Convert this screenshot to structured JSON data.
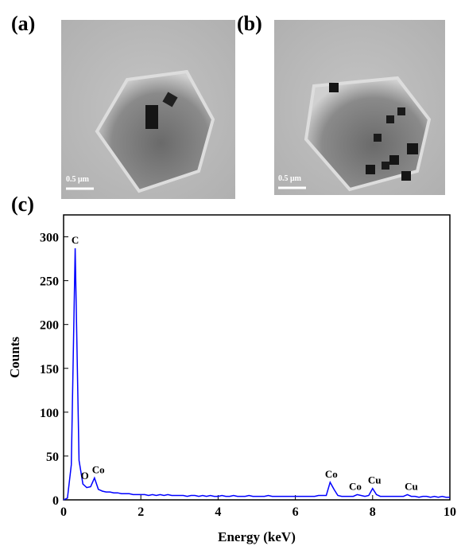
{
  "panels": [
    {
      "label": "(a)",
      "scale": "0.5 μm"
    },
    {
      "label": "(b)",
      "scale": "0.5 μm"
    },
    {
      "label": "(c)"
    }
  ],
  "chart_data": {
    "type": "line",
    "x_label": "Energy (keV)",
    "y_label": "Counts",
    "color": "#0000ff",
    "xlim": [
      0,
      10
    ],
    "ylim": [
      0,
      325
    ],
    "xticks": [
      0,
      2,
      4,
      6,
      8,
      10
    ],
    "yticks": [
      0,
      50,
      100,
      150,
      200,
      250,
      300
    ],
    "x": [
      0,
      0.1,
      0.2,
      0.3,
      0.4,
      0.5,
      0.6,
      0.7,
      0.8,
      0.9,
      1,
      1.1,
      1.2,
      1.3,
      1.4,
      1.5,
      1.6,
      1.7,
      1.8,
      1.9,
      2,
      2.1,
      2.2,
      2.3,
      2.4,
      2.5,
      2.6,
      2.7,
      2.8,
      2.9,
      3,
      3.1,
      3.2,
      3.3,
      3.4,
      3.5,
      3.6,
      3.7,
      3.8,
      3.9,
      4,
      4.1,
      4.2,
      4.3,
      4.4,
      4.5,
      4.6,
      4.7,
      4.8,
      4.9,
      5,
      5.1,
      5.2,
      5.3,
      5.4,
      5.5,
      5.6,
      5.7,
      5.8,
      5.9,
      6,
      6.1,
      6.2,
      6.3,
      6.4,
      6.5,
      6.6,
      6.7,
      6.8,
      6.9,
      7,
      7.1,
      7.2,
      7.3,
      7.4,
      7.5,
      7.6,
      7.7,
      7.8,
      7.9,
      8,
      8.1,
      8.2,
      8.3,
      8.4,
      8.5,
      8.6,
      8.7,
      8.8,
      8.9,
      9,
      9.1,
      9.2,
      9.3,
      9.4,
      9.5,
      9.6,
      9.7,
      9.8,
      9.9,
      10
    ],
    "values": [
      0,
      2,
      40,
      287,
      45,
      18,
      14,
      15,
      25,
      12,
      10,
      9,
      9,
      8,
      8,
      7,
      7,
      7,
      6,
      6,
      6,
      6,
      5,
      6,
      5,
      6,
      5,
      6,
      5,
      5,
      5,
      5,
      4,
      5,
      5,
      4,
      5,
      4,
      5,
      4,
      4,
      5,
      4,
      4,
      5,
      4,
      4,
      4,
      5,
      4,
      4,
      4,
      4,
      5,
      4,
      4,
      4,
      4,
      4,
      4,
      4,
      4,
      4,
      4,
      4,
      4,
      5,
      5,
      5,
      20,
      12,
      5,
      4,
      4,
      4,
      4,
      6,
      5,
      4,
      5,
      13,
      6,
      4,
      4,
      4,
      4,
      4,
      4,
      4,
      6,
      4,
      4,
      3,
      4,
      4,
      3,
      4,
      3,
      4,
      3,
      3
    ],
    "annotations": [
      {
        "text": "C",
        "x": 0.3,
        "y": 287
      },
      {
        "text": "O",
        "x": 0.55,
        "y": 18
      },
      {
        "text": "Co",
        "x": 0.9,
        "y": 25
      },
      {
        "text": "Co",
        "x": 6.93,
        "y": 20
      },
      {
        "text": "Co",
        "x": 7.55,
        "y": 6
      },
      {
        "text": "Cu",
        "x": 8.05,
        "y": 13
      },
      {
        "text": "Cu",
        "x": 9.0,
        "y": 6
      }
    ]
  }
}
